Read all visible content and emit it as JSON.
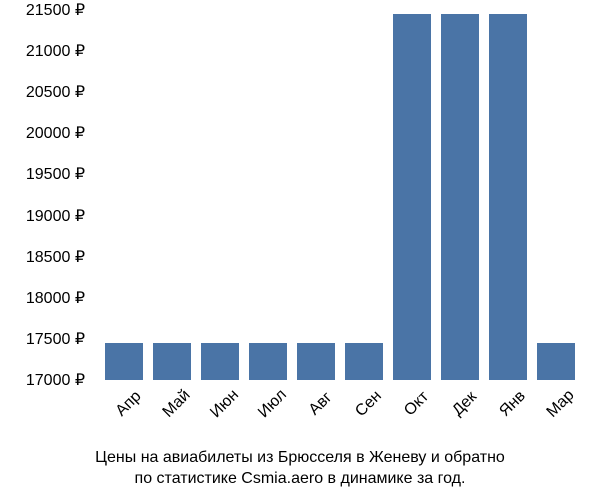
{
  "chart": {
    "type": "bar",
    "categories": [
      "Апр",
      "Май",
      "Июн",
      "Июл",
      "Авг",
      "Сен",
      "Окт",
      "Дек",
      "Янв",
      "Мар"
    ],
    "values": [
      17450,
      17450,
      17450,
      17450,
      17450,
      17450,
      21450,
      21450,
      21450,
      17450
    ],
    "bar_color": "#4a74a6",
    "background_color": "#ffffff",
    "ylim": [
      17000,
      21500
    ],
    "ytick_values": [
      17000,
      17500,
      18000,
      18500,
      19000,
      19500,
      20000,
      20500,
      21000,
      21500
    ],
    "ytick_labels": [
      "17000 ₽",
      "17500 ₽",
      "18000 ₽",
      "18500 ₽",
      "19000 ₽",
      "19500 ₽",
      "20000 ₽",
      "20500 ₽",
      "21000 ₽",
      "21500 ₽"
    ],
    "ytick_step": 500,
    "label_fontsize": 16,
    "text_color": "#000000",
    "bar_width_ratio": 0.75,
    "x_label_rotation": -45,
    "caption_line1": "Цены на авиабилеты из Брюсселя в Женеву и обратно",
    "caption_line2": "по статистике Csmia.aero в динамике за год."
  }
}
